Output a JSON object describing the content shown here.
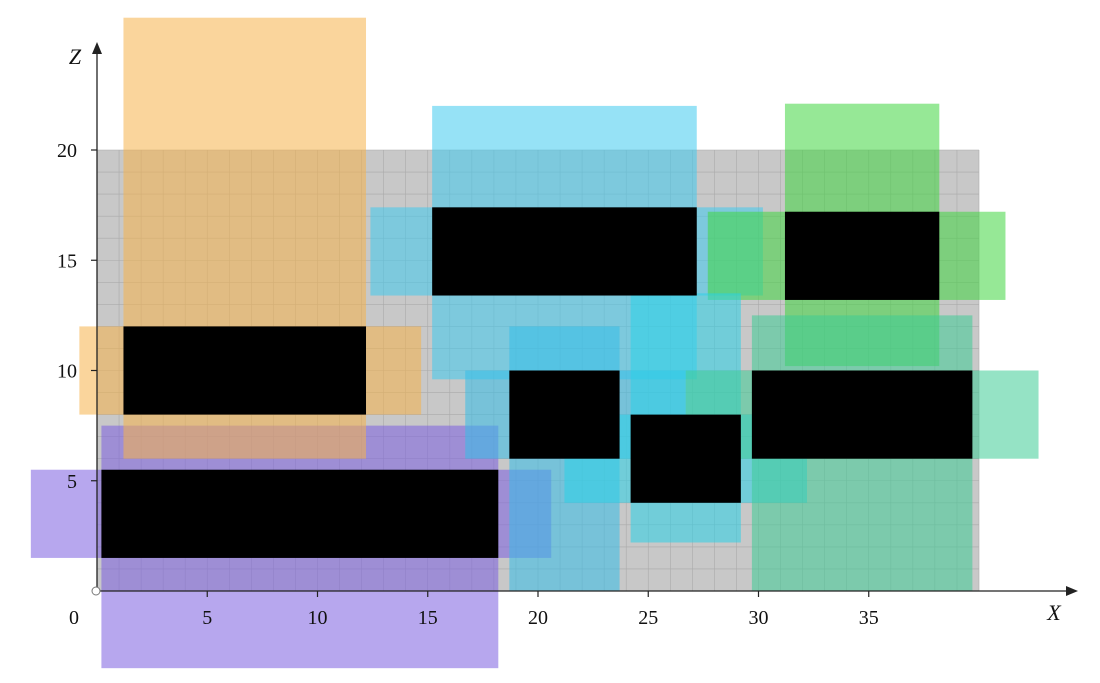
{
  "axes": {
    "x_label": "X",
    "z_label": "Z",
    "origin_label": "0",
    "x_ticks": [
      {
        "value": 5,
        "label": "5"
      },
      {
        "value": 10,
        "label": "10"
      },
      {
        "value": 15,
        "label": "15"
      },
      {
        "value": 20,
        "label": "20"
      },
      {
        "value": 25,
        "label": "25"
      },
      {
        "value": 30,
        "label": "30"
      },
      {
        "value": 35,
        "label": "35"
      }
    ],
    "z_ticks": [
      {
        "value": 5,
        "label": "5"
      },
      {
        "value": 10,
        "label": "10"
      },
      {
        "value": 15,
        "label": "15"
      },
      {
        "value": 20,
        "label": "20"
      }
    ]
  },
  "container": {
    "x_range": [
      0,
      40
    ],
    "z_range": [
      0,
      20
    ],
    "fill_color": "#c8c8c8",
    "grid_color": "#aaaaaa",
    "grid_step": 1
  },
  "items": [
    {
      "id": "item-1",
      "block": {
        "x": [
          0.2,
          18.2
        ],
        "z": [
          1.5,
          5.5
        ]
      },
      "halos": [
        {
          "x": [
            0.2,
            18.2
          ],
          "z": [
            -3.5,
            7.5
          ]
        },
        {
          "x": [
            -3,
            20.6
          ],
          "z": [
            1.5,
            5.5
          ]
        }
      ],
      "color": "#7b5fe0"
    },
    {
      "id": "item-2",
      "block": {
        "x": [
          1.2,
          12.2
        ],
        "z": [
          8,
          12
        ]
      },
      "halos": [
        {
          "x": [
            1.2,
            12.2
          ],
          "z": [
            6,
            26
          ]
        },
        {
          "x": [
            -0.8,
            14.7
          ],
          "z": [
            8,
            12
          ]
        }
      ],
      "color": "#f6b34a"
    },
    {
      "id": "item-3",
      "block": {
        "x": [
          15.2,
          27.2
        ],
        "z": [
          13.4,
          17.4
        ]
      },
      "halos": [
        {
          "x": [
            15.2,
            27.2
          ],
          "z": [
            9.6,
            22
          ]
        },
        {
          "x": [
            12.4,
            30.2
          ],
          "z": [
            13.4,
            17.4
          ]
        }
      ],
      "color": "#3fcbef"
    },
    {
      "id": "item-4",
      "block": {
        "x": [
          31.2,
          38.2
        ],
        "z": [
          13.2,
          17.2
        ]
      },
      "halos": [
        {
          "x": [
            31.2,
            38.2
          ],
          "z": [
            10.2,
            22.1
          ]
        },
        {
          "x": [
            27.7,
            41.2
          ],
          "z": [
            13.2,
            17.2
          ]
        }
      ],
      "color": "#3fd63f"
    },
    {
      "id": "item-5",
      "block": {
        "x": [
          18.7,
          23.7
        ],
        "z": [
          6,
          10
        ]
      },
      "halos": [
        {
          "x": [
            18.7,
            23.7
          ],
          "z": [
            0,
            12
          ]
        },
        {
          "x": [
            16.7,
            26.7
          ],
          "z": [
            6,
            10
          ]
        }
      ],
      "color": "#35bde8"
    },
    {
      "id": "item-6",
      "block": {
        "x": [
          24.2,
          29.2
        ],
        "z": [
          4,
          8
        ]
      },
      "halos": [
        {
          "x": [
            24.2,
            29.2
          ],
          "z": [
            2.2,
            13.5
          ]
        },
        {
          "x": [
            21.2,
            32.2
          ],
          "z": [
            4,
            8
          ]
        }
      ],
      "color": "#2ad2e8"
    },
    {
      "id": "item-7",
      "block": {
        "x": [
          29.7,
          39.7
        ],
        "z": [
          6,
          10
        ]
      },
      "halos": [
        {
          "x": [
            29.7,
            39.7
          ],
          "z": [
            0,
            12.5
          ]
        },
        {
          "x": [
            26.7,
            42.7
          ],
          "z": [
            6,
            10
          ]
        }
      ],
      "color": "#3ecc96"
    }
  ],
  "chart_data": {
    "type": "bin-packing-2d",
    "x_label": "X",
    "z_label": "Z",
    "container": {
      "x": [
        0,
        40
      ],
      "z": [
        0,
        20
      ]
    },
    "placed_items": [
      {
        "x": [
          0.2,
          18.2
        ],
        "z": [
          1.5,
          5.5
        ]
      },
      {
        "x": [
          1.2,
          12.2
        ],
        "z": [
          8,
          12
        ]
      },
      {
        "x": [
          15.2,
          27.2
        ],
        "z": [
          13.4,
          17.4
        ]
      },
      {
        "x": [
          31.2,
          38.2
        ],
        "z": [
          13.2,
          17.2
        ]
      },
      {
        "x": [
          18.7,
          23.7
        ],
        "z": [
          6,
          10
        ]
      },
      {
        "x": [
          24.2,
          29.2
        ],
        "z": [
          4,
          8
        ]
      },
      {
        "x": [
          29.7,
          39.7
        ],
        "z": [
          6,
          10
        ]
      }
    ]
  }
}
